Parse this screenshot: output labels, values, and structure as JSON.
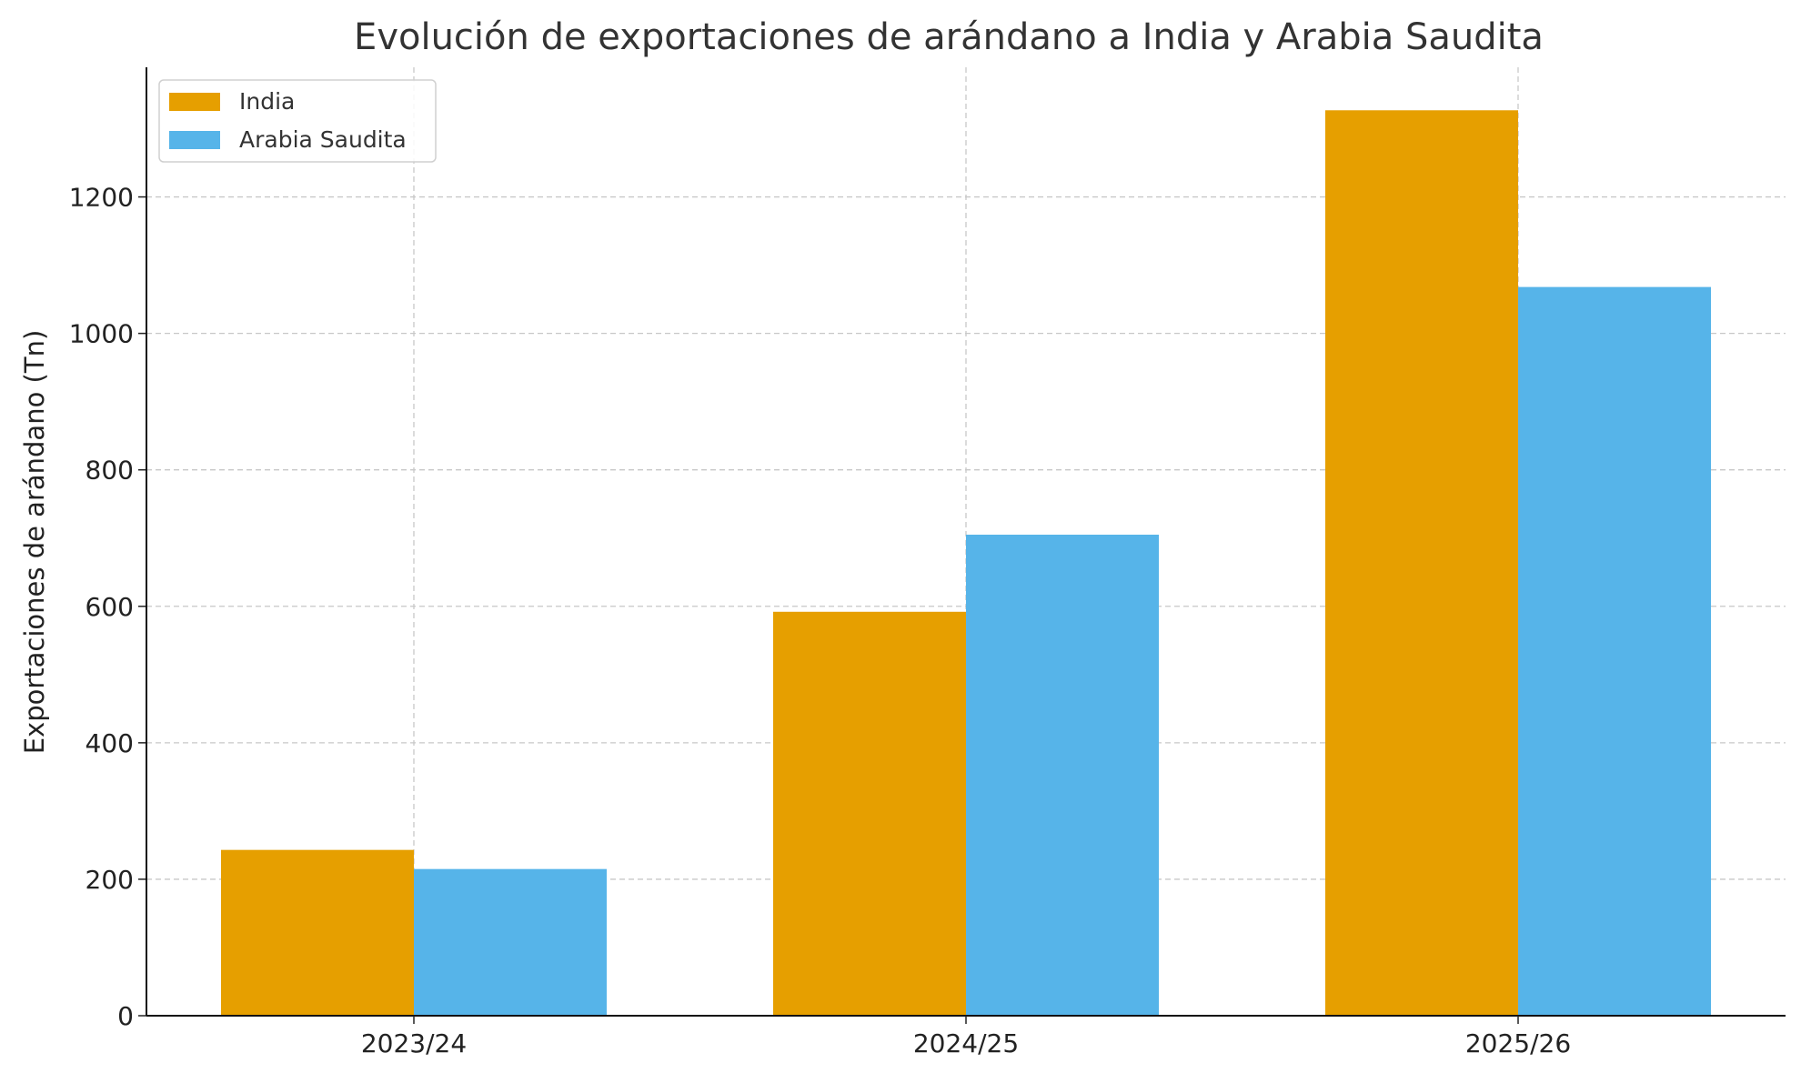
{
  "chart_data": {
    "type": "bar",
    "title": "Evolución de exportaciones de arándano a India y Arabia Saudita",
    "xlabel": "",
    "ylabel": "Exportaciones de arándano (Tn)",
    "categories": [
      "2023/24",
      "2024/25",
      "2025/26"
    ],
    "series": [
      {
        "name": "India",
        "values": [
          243,
          592,
          1327
        ],
        "color": "#E69F00"
      },
      {
        "name": "Arabia Saudita",
        "values": [
          215,
          705,
          1068
        ],
        "color": "#56B4E9"
      }
    ],
    "ylim": [
      0,
      1390
    ],
    "yticks": [
      "0",
      "200",
      "400",
      "600",
      "800",
      "1000",
      "1200"
    ],
    "grid": true,
    "legend": "top-left"
  }
}
